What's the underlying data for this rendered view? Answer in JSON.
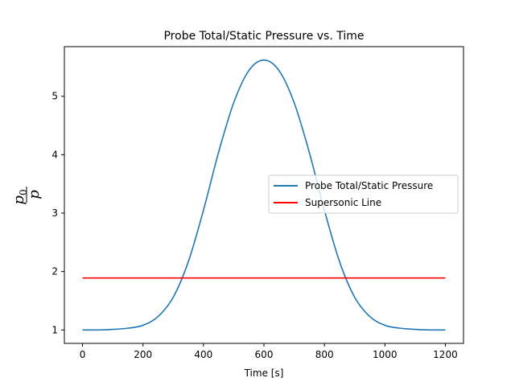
{
  "chart_data": {
    "type": "line",
    "title": "Probe Total/Static Pressure vs. Time",
    "xlabel": "Time [s]",
    "ylabel_num": "p",
    "ylabel_num_sub": "0",
    "ylabel_den": "p",
    "xlim": [
      -60,
      1260
    ],
    "ylim": [
      0.77,
      5.85
    ],
    "xticks": [
      0,
      200,
      400,
      600,
      800,
      1000,
      1200
    ],
    "yticks": [
      1,
      2,
      3,
      4,
      5
    ],
    "grid": false,
    "legend_position": "center-right",
    "series": [
      {
        "name": "Probe Total/Static Pressure",
        "color": "#1f77b4",
        "x": [
          0,
          50,
          100,
          150,
          200,
          250,
          300,
          350,
          400,
          450,
          500,
          550,
          600,
          650,
          700,
          750,
          800,
          850,
          900,
          950,
          1000,
          1050,
          1100,
          1150,
          1200
        ],
        "y": [
          1.0,
          1.0,
          1.01,
          1.03,
          1.08,
          1.23,
          1.56,
          2.17,
          3.05,
          4.04,
          4.89,
          5.44,
          5.62,
          5.44,
          4.89,
          4.04,
          3.05,
          2.17,
          1.56,
          1.23,
          1.08,
          1.03,
          1.01,
          1.0,
          1.0
        ]
      },
      {
        "name": "Supersonic Line",
        "color": "#ff0000",
        "x": [
          0,
          1200
        ],
        "y": [
          1.89,
          1.89
        ]
      }
    ]
  }
}
